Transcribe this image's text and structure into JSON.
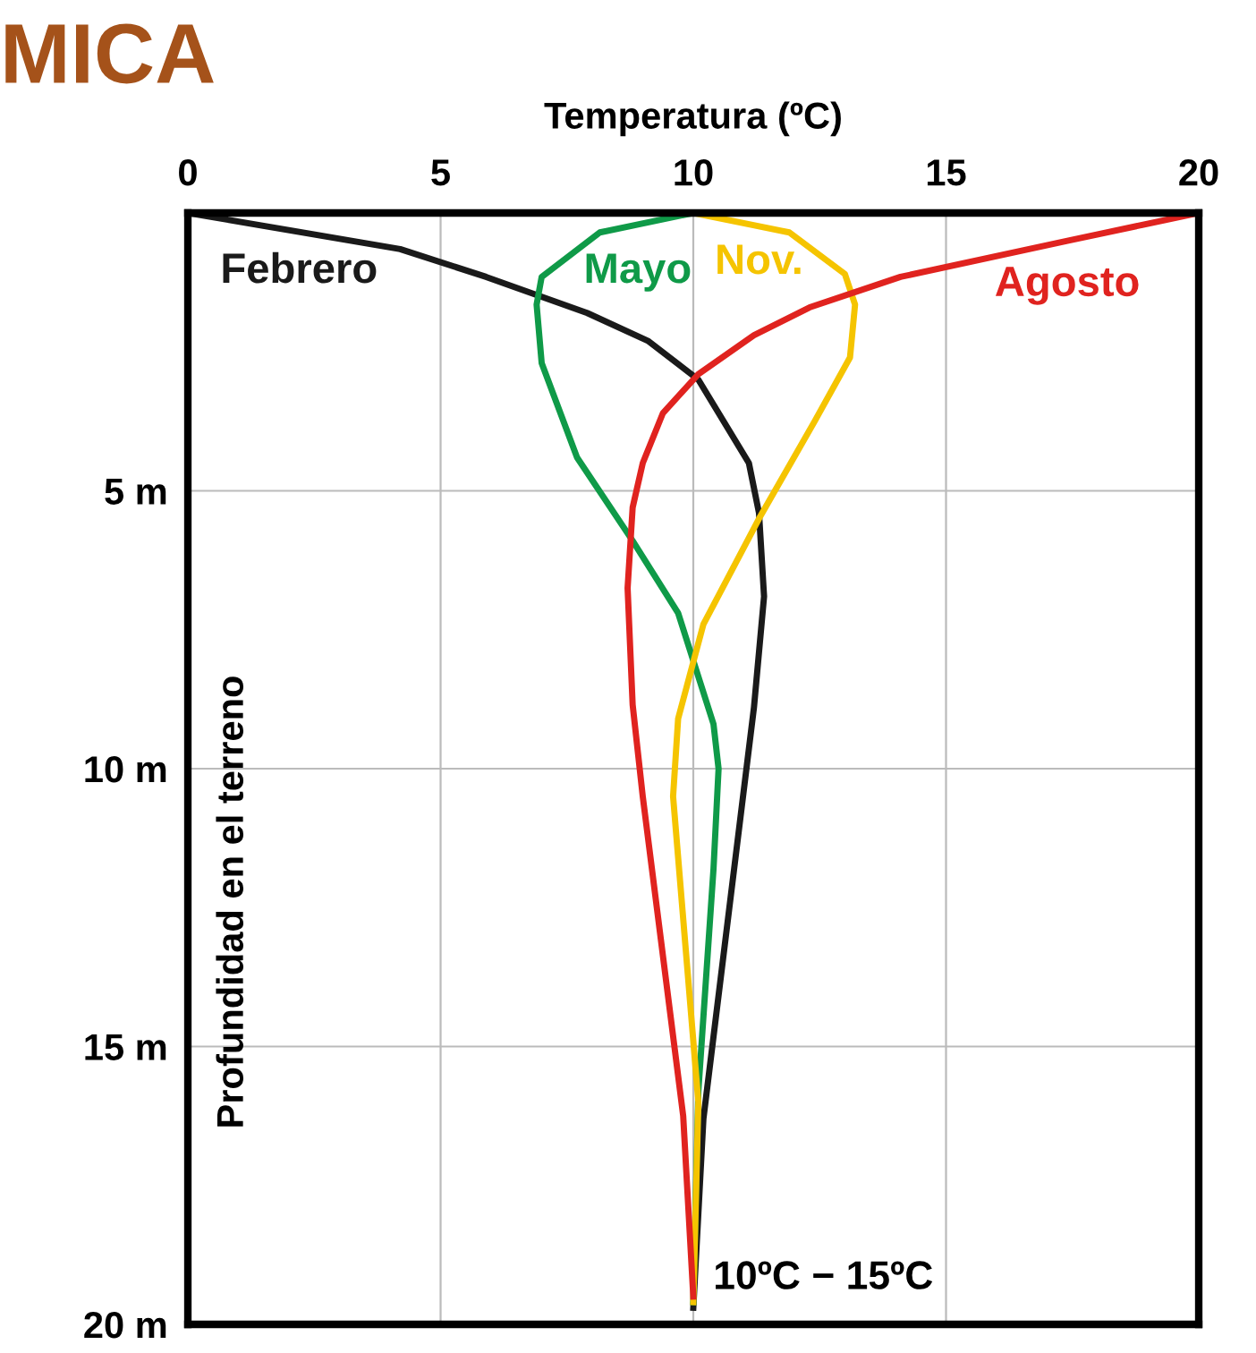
{
  "chart_data": {
    "type": "line",
    "xlabel": "Temperatura (ºC)",
    "ylabel": "Profundidad en el terreno",
    "xlim": [
      0,
      20
    ],
    "xticks": [
      0,
      5,
      10,
      15,
      20
    ],
    "ylim": [
      20,
      0
    ],
    "yticks": [
      {
        "value": 5,
        "label": "5 m"
      },
      {
        "value": 10,
        "label": "10 m"
      },
      {
        "value": 15,
        "label": "15 m"
      },
      {
        "value": 20,
        "label": "20 m"
      }
    ],
    "grid": true,
    "legend": false,
    "marker": "none",
    "line_style": "solid",
    "series": [
      {
        "name": "Febrero",
        "color": "#1a1a1a",
        "x": [
          0,
          4.2,
          5.9,
          7.9,
          9.1,
          10.1,
          11.1,
          11.3,
          11.4,
          11.2,
          10.2,
          10.0
        ],
        "values": [
          0,
          0.65,
          1.15,
          1.8,
          2.3,
          3.0,
          4.5,
          5.4,
          6.9,
          8.9,
          16.3,
          19.7
        ]
      },
      {
        "name": "Mayo",
        "color": "#0f9a48",
        "x": [
          10,
          8.15,
          7.0,
          6.9,
          7.0,
          7.7,
          8.8,
          9.7,
          10.4,
          10.5,
          10.4,
          10.1,
          10.0
        ],
        "values": [
          0,
          0.35,
          1.15,
          1.65,
          2.7,
          4.4,
          5.9,
          7.2,
          9.2,
          10,
          11.8,
          15.8,
          19.6
        ]
      },
      {
        "name": "Nov.",
        "color": "#f5c400",
        "x": [
          10,
          11.9,
          13.0,
          13.2,
          13.1,
          12.4,
          11.3,
          10.2,
          9.7,
          9.6,
          10.1,
          10.0
        ],
        "values": [
          0,
          0.35,
          1.1,
          1.65,
          2.6,
          3.75,
          5.5,
          7.4,
          9.1,
          10.5,
          16,
          19.6
        ]
      },
      {
        "name": "Agosto",
        "color": "#e0231f",
        "x": [
          20,
          17.4,
          14.1,
          12.3,
          11.2,
          10.1,
          9.4,
          9.0,
          8.8,
          8.7,
          8.8,
          9.0,
          9.8,
          10.0
        ],
        "values": [
          0,
          0.5,
          1.15,
          1.7,
          2.2,
          2.9,
          3.6,
          4.5,
          5.3,
          6.75,
          8.85,
          10.5,
          16.25,
          19.5
        ]
      }
    ],
    "annotations": [
      "MICA",
      {
        "text": "10ºC − 15ºC",
        "x": 10,
        "y": 19.6
      }
    ]
  }
}
